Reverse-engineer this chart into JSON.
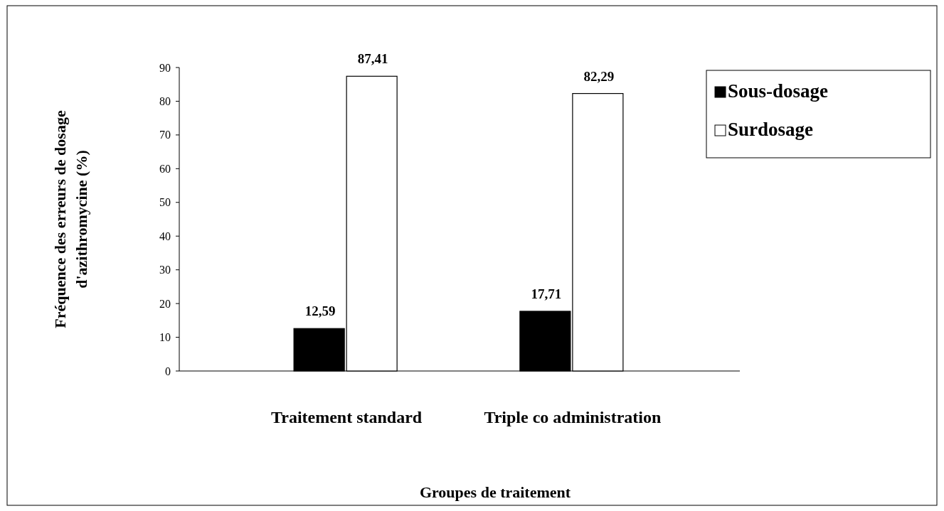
{
  "chart_data": {
    "type": "bar",
    "xlabel": "Groupes de traitement",
    "ylabel": "Fréquence des erreurs de dosage\nd'azithromycine (%)",
    "categories": [
      "Traitement standard",
      "Triple co administration"
    ],
    "series": [
      {
        "name": "Sous-dosage",
        "color": "#000000",
        "values": [
          12.59,
          17.71
        ],
        "value_labels": [
          "12,59",
          "17,71"
        ]
      },
      {
        "name": "Surdosage",
        "color": "#ffffff",
        "values": [
          87.41,
          82.29
        ],
        "value_labels": [
          "87,41",
          "82,29"
        ]
      }
    ],
    "ylim": [
      0,
      90
    ],
    "yticks": [
      0,
      10,
      20,
      30,
      40,
      50,
      60,
      70,
      80,
      90
    ],
    "grid": false,
    "legend": "top right"
  }
}
